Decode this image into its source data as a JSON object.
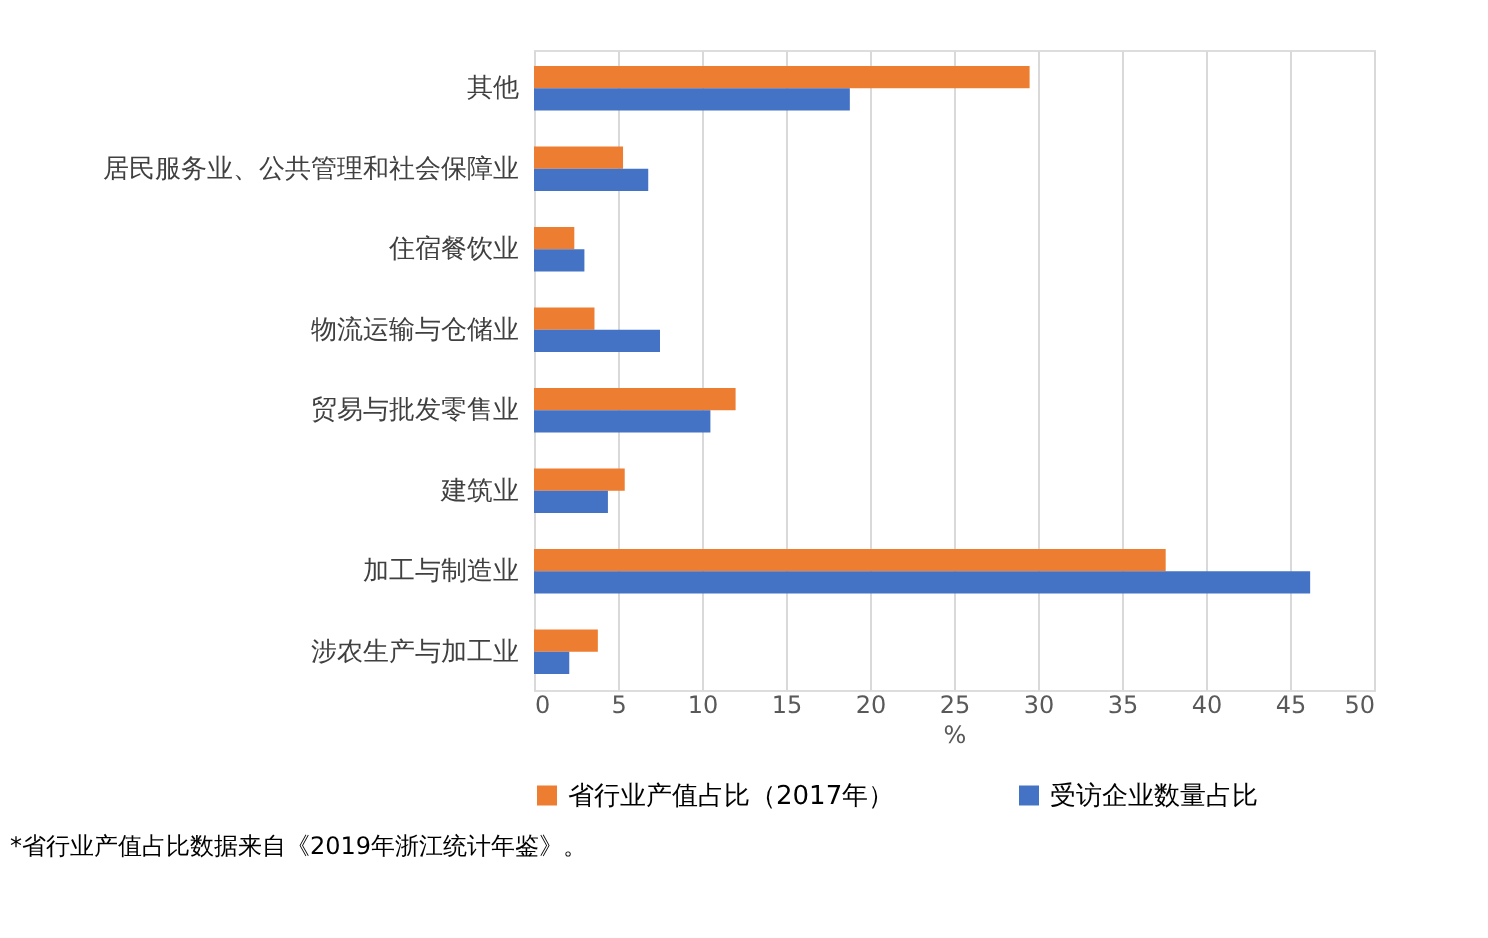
{
  "chart_data": {
    "type": "bar",
    "orientation": "horizontal",
    "xlabel": "%",
    "categories": [
      "其他",
      "居民服务业、公共管理和社会保障业",
      "住宿餐饮业",
      "物流运输与仓储业",
      "贸易与批发零售业",
      "建筑业",
      "加工与制造业",
      "涉农生产与加工业"
    ],
    "series": [
      {
        "name": "省行业产值占比（2017年）",
        "color": "#ed7d31",
        "values": [
          29.5,
          5.3,
          2.4,
          3.6,
          12.0,
          5.4,
          37.6,
          3.8
        ]
      },
      {
        "name": "受访企业数量占比",
        "color": "#4472c4",
        "values": [
          18.8,
          6.8,
          3.0,
          7.5,
          10.5,
          4.4,
          46.2,
          2.1
        ]
      }
    ],
    "xlim": [
      0,
      50
    ],
    "xticks": [
      0,
      5,
      10,
      15,
      20,
      25,
      30,
      35,
      40,
      45,
      50
    ],
    "grid": "x",
    "legend": "bottom",
    "annotations": [
      "*省行业产值占比数据来自《2019年浙江统计年鉴》。"
    ]
  }
}
